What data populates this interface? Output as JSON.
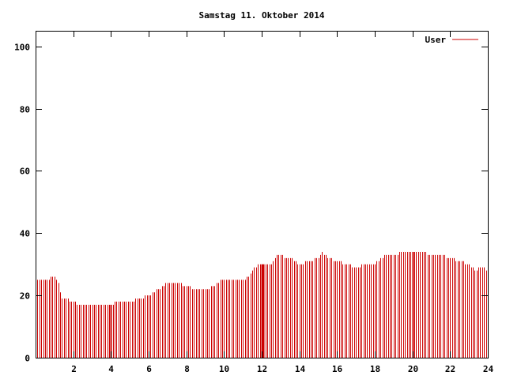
{
  "chart_data": {
    "type": "bar",
    "title": "Samstag 11. Oktober 2014",
    "xlabel": "",
    "ylabel": "",
    "xlim": [
      0,
      24
    ],
    "ylim": [
      0,
      105
    ],
    "x_ticks": [
      2,
      4,
      6,
      8,
      10,
      12,
      14,
      16,
      18,
      20,
      22,
      24
    ],
    "y_ticks": [
      0,
      20,
      40,
      60,
      80,
      100
    ],
    "grid": false,
    "legend_position": "top-right",
    "series": [
      {
        "name": "User",
        "color": "#cc0000",
        "bin_hours": 0.1,
        "points": [
          [
            0.0,
            25
          ],
          [
            0.5,
            25
          ],
          [
            1.0,
            26
          ],
          [
            1.2,
            24
          ],
          [
            1.3,
            21
          ],
          [
            1.4,
            19
          ],
          [
            2.0,
            18
          ],
          [
            2.3,
            17
          ],
          [
            3.0,
            17
          ],
          [
            3.5,
            17
          ],
          [
            4.0,
            17
          ],
          [
            4.3,
            18
          ],
          [
            5.0,
            18
          ],
          [
            5.5,
            19
          ],
          [
            6.0,
            20
          ],
          [
            6.5,
            22
          ],
          [
            7.0,
            24
          ],
          [
            7.5,
            24
          ],
          [
            8.0,
            23
          ],
          [
            8.5,
            22
          ],
          [
            9.0,
            22
          ],
          [
            9.5,
            23
          ],
          [
            9.8,
            25
          ],
          [
            10.5,
            25
          ],
          [
            11.0,
            25
          ],
          [
            11.3,
            26
          ],
          [
            11.6,
            29
          ],
          [
            12.0,
            30
          ],
          [
            12.5,
            30
          ],
          [
            12.8,
            33
          ],
          [
            13.5,
            32
          ],
          [
            14.0,
            30
          ],
          [
            14.5,
            31
          ],
          [
            15.0,
            32
          ],
          [
            15.2,
            34
          ],
          [
            15.5,
            32
          ],
          [
            16.0,
            31
          ],
          [
            16.5,
            30
          ],
          [
            17.0,
            29
          ],
          [
            17.5,
            30
          ],
          [
            18.0,
            30
          ],
          [
            18.5,
            33
          ],
          [
            19.0,
            33
          ],
          [
            19.5,
            34
          ],
          [
            20.0,
            34
          ],
          [
            20.5,
            34
          ],
          [
            21.0,
            33
          ],
          [
            21.5,
            33
          ],
          [
            22.0,
            32
          ],
          [
            22.5,
            31
          ],
          [
            23.0,
            30
          ],
          [
            23.3,
            28
          ],
          [
            23.6,
            29
          ],
          [
            24.0,
            28
          ]
        ],
        "highlighted_x": [
          4.0,
          12.0,
          12.1,
          20.0
        ]
      }
    ]
  }
}
